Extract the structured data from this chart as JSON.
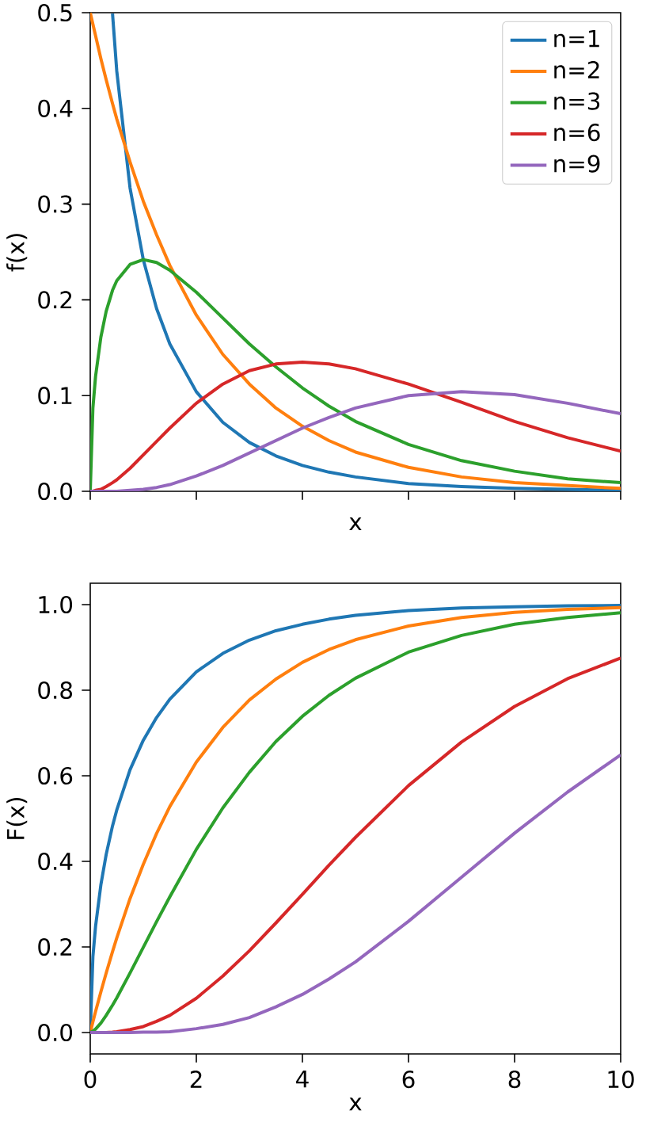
{
  "chart_data": [
    {
      "type": "line",
      "xlabel": "x",
      "ylabel": "f(x)",
      "legend": "top right",
      "tick_labels": "y",
      "xlim": [
        0,
        10
      ],
      "xticks": [
        0,
        2,
        4,
        6,
        8,
        10
      ],
      "ylim": [
        0,
        0.5
      ],
      "yticks": [
        {
          "value": 0,
          "label": "0.0"
        },
        {
          "value": 0.1,
          "label": "0.1"
        },
        {
          "value": 0.2,
          "label": "0.2"
        },
        {
          "value": 0.3,
          "label": "0.3"
        },
        {
          "value": 0.4,
          "label": "0.4"
        },
        {
          "value": 0.5,
          "label": "0.5"
        }
      ],
      "x": [
        0,
        0.05,
        0.1,
        0.2,
        0.3,
        0.42,
        0.5,
        0.75,
        1,
        1.25,
        1.5,
        2,
        2.5,
        3,
        3.5,
        4,
        4.5,
        5,
        6,
        7,
        8,
        9,
        10
      ],
      "series": [
        {
          "name": "n=1",
          "color": "#1f77b4",
          "values": [
            null,
            null,
            null,
            null,
            null,
            0.499,
            0.439,
            0.317,
            0.242,
            0.191,
            0.154,
            0.104,
            0.072,
            0.051,
            0.037,
            0.027,
            0.02,
            0.015,
            0.008,
            0.005,
            0.003,
            0.002,
            0.001
          ]
        },
        {
          "name": "n=2",
          "color": "#ff7f0e",
          "values": [
            0.5,
            0.488,
            0.476,
            0.452,
            0.43,
            0.405,
            0.389,
            0.344,
            0.303,
            0.268,
            0.236,
            0.184,
            0.143,
            0.112,
            0.087,
            0.068,
            0.053,
            0.041,
            0.025,
            0.015,
            0.009,
            0.006,
            0.003
          ]
        },
        {
          "name": "n=3",
          "color": "#2ca02c",
          "values": [
            0,
            0.087,
            0.12,
            0.161,
            0.188,
            0.21,
            0.22,
            0.237,
            0.242,
            0.239,
            0.231,
            0.208,
            0.181,
            0.154,
            0.13,
            0.108,
            0.089,
            0.073,
            0.049,
            0.032,
            0.021,
            0.013,
            0.009
          ]
        },
        {
          "name": "n=6",
          "color": "#d62728",
          "values": [
            0,
            0,
            0.001,
            0.002,
            0.005,
            0.009,
            0.012,
            0.024,
            0.038,
            0.052,
            0.066,
            0.092,
            0.112,
            0.126,
            0.133,
            0.135,
            0.133,
            0.128,
            0.112,
            0.093,
            0.073,
            0.056,
            0.042
          ]
        },
        {
          "name": "n=9",
          "color": "#9467bd",
          "values": [
            0,
            0,
            0,
            0,
            0,
            0,
            0,
            0.001,
            0.002,
            0.004,
            0.007,
            0.016,
            0.027,
            0.04,
            0.053,
            0.066,
            0.077,
            0.087,
            0.1,
            0.104,
            0.101,
            0.092,
            0.081
          ]
        }
      ]
    },
    {
      "type": "line",
      "xlabel": "x",
      "ylabel": "F(x)",
      "xlim": [
        0,
        10
      ],
      "xticks": [
        0,
        2,
        4,
        6,
        8,
        10
      ],
      "ylim": [
        -0.05,
        1.05
      ],
      "yticks": [
        {
          "value": 0,
          "label": "0.0"
        },
        {
          "value": 0.2,
          "label": "0.2"
        },
        {
          "value": 0.4,
          "label": "0.4"
        },
        {
          "value": 0.6,
          "label": "0.6"
        },
        {
          "value": 0.8,
          "label": "0.8"
        },
        {
          "value": 1,
          "label": "1.0"
        }
      ],
      "x": [
        0,
        0.05,
        0.1,
        0.2,
        0.3,
        0.42,
        0.5,
        0.75,
        1,
        1.25,
        1.5,
        2,
        2.5,
        3,
        3.5,
        4,
        4.5,
        5,
        6,
        7,
        8,
        9,
        10
      ],
      "series": [
        {
          "color": "#1f77b4",
          "values": [
            0,
            0.177,
            0.248,
            0.345,
            0.416,
            0.483,
            0.52,
            0.614,
            0.683,
            0.736,
            0.779,
            0.843,
            0.886,
            0.917,
            0.939,
            0.954,
            0.966,
            0.975,
            0.986,
            0.992,
            0.995,
            0.997,
            0.998
          ]
        },
        {
          "color": "#ff7f0e",
          "values": [
            0,
            0.025,
            0.049,
            0.095,
            0.139,
            0.189,
            0.221,
            0.313,
            0.393,
            0.465,
            0.528,
            0.632,
            0.713,
            0.777,
            0.826,
            0.865,
            0.895,
            0.918,
            0.95,
            0.97,
            0.982,
            0.989,
            0.993
          ]
        },
        {
          "color": "#2ca02c",
          "values": [
            0,
            0.003,
            0.008,
            0.022,
            0.04,
            0.064,
            0.081,
            0.139,
            0.199,
            0.259,
            0.317,
            0.428,
            0.525,
            0.608,
            0.68,
            0.739,
            0.788,
            0.828,
            0.889,
            0.928,
            0.954,
            0.97,
            0.981
          ]
        },
        {
          "color": "#d62728",
          "values": [
            null,
            null,
            null,
            0,
            0,
            0.001,
            0.002,
            0.007,
            0.014,
            0.026,
            0.04,
            0.08,
            0.132,
            0.191,
            0.256,
            0.323,
            0.391,
            0.456,
            0.577,
            0.679,
            0.762,
            0.827,
            0.875
          ]
        },
        {
          "color": "#9467bd",
          "values": [
            0,
            0,
            0,
            0,
            0,
            0,
            0,
            0,
            0.001,
            0.001,
            0.002,
            0.009,
            0.019,
            0.035,
            0.06,
            0.089,
            0.125,
            0.165,
            0.26,
            0.363,
            0.466,
            0.562,
            0.649
          ]
        }
      ]
    }
  ]
}
